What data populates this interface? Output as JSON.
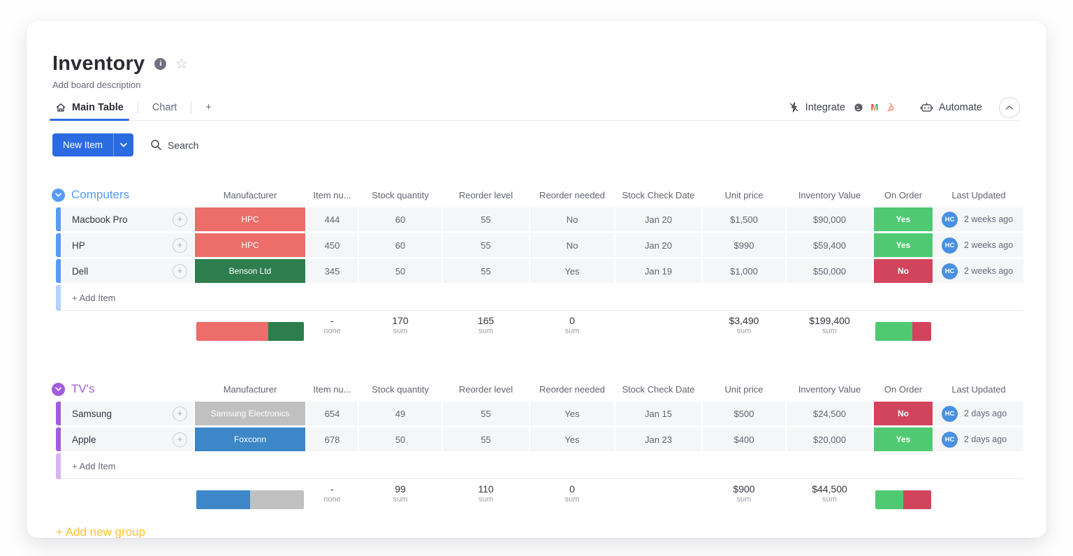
{
  "theme": {
    "accent": "#2b6be2",
    "avatar_color": "#4a90e2",
    "add_group_color": "#fdc12e"
  },
  "board": {
    "title": "Inventory",
    "description": "Add board description",
    "tabs": [
      {
        "label": "Main Table"
      },
      {
        "label": "Chart"
      },
      {
        "label": "+"
      }
    ],
    "integrate_label": "Integrate",
    "automate_label": "Automate"
  },
  "toolbar": {
    "new_item_label": "New Item",
    "search_label": "Search"
  },
  "columns": [
    "Manufacturer",
    "Item nu...",
    "Stock quantity",
    "Reorder level",
    "Reorder needed",
    "Stock Check Date",
    "Unit price",
    "Inventory Value",
    "On Order",
    "Last Updated"
  ],
  "groups": [
    {
      "name": "Computers",
      "color": "#579bfc",
      "add_item_label": "+ Add Item",
      "items": [
        {
          "name": "Macbook Pro",
          "manufacturer": "HPC",
          "manufacturer_color": "#ec6d69",
          "item_number": "444",
          "stock_quantity": "60",
          "reorder_level": "55",
          "reorder_needed": "No",
          "stock_check_date": "Jan 20",
          "unit_price": "$1,500",
          "inventory_value": "$90,000",
          "on_order": "Yes",
          "on_order_color": "#4fca73",
          "owner_initials": "HC",
          "last_updated": "2 weeks ago"
        },
        {
          "name": "HP",
          "manufacturer": "HPC",
          "manufacturer_color": "#ec6d69",
          "item_number": "450",
          "stock_quantity": "60",
          "reorder_level": "55",
          "reorder_needed": "No",
          "stock_check_date": "Jan 20",
          "unit_price": "$990",
          "inventory_value": "$59,400",
          "on_order": "Yes",
          "on_order_color": "#4fca73",
          "owner_initials": "HC",
          "last_updated": "2 weeks ago"
        },
        {
          "name": "Dell",
          "manufacturer": "Benson Ltd",
          "manufacturer_color": "#2d7d4e",
          "item_number": "345",
          "stock_quantity": "50",
          "reorder_level": "55",
          "reorder_needed": "Yes",
          "stock_check_date": "Jan 19",
          "unit_price": "$1,000",
          "inventory_value": "$50,000",
          "on_order": "No",
          "on_order_color": "#d2445c",
          "owner_initials": "HC",
          "last_updated": "2 weeks ago"
        }
      ],
      "summary": {
        "manufacturer_bar": [
          {
            "color": "#ec6d69",
            "pct": 66.7
          },
          {
            "color": "#2d7d4e",
            "pct": 33.3
          }
        ],
        "item_number": {
          "value": "-",
          "label": "none"
        },
        "stock_quantity": {
          "value": "170",
          "label": "sum"
        },
        "reorder_level": {
          "value": "165",
          "label": "sum"
        },
        "reorder_needed": {
          "value": "0",
          "label": "sum"
        },
        "unit_price": {
          "value": "$3,490",
          "label": "sum"
        },
        "inventory_value": {
          "value": "$199,400",
          "label": "sum"
        },
        "on_order_bar": [
          {
            "color": "#4fca73",
            "pct": 66.7
          },
          {
            "color": "#d2445c",
            "pct": 33.3
          }
        ]
      }
    },
    {
      "name": "TV's",
      "color": "#a25ddc",
      "add_item_label": "+ Add Item",
      "items": [
        {
          "name": "Samsung",
          "manufacturer": "Samsung Electronics",
          "manufacturer_color": "#c0c0c0",
          "item_number": "654",
          "stock_quantity": "49",
          "reorder_level": "55",
          "reorder_needed": "Yes",
          "stock_check_date": "Jan 15",
          "unit_price": "$500",
          "inventory_value": "$24,500",
          "on_order": "No",
          "on_order_color": "#d2445c",
          "owner_initials": "HC",
          "last_updated": "2 days ago"
        },
        {
          "name": "Apple",
          "manufacturer": "Foxconn",
          "manufacturer_color": "#3d87c8",
          "item_number": "678",
          "stock_quantity": "50",
          "reorder_level": "55",
          "reorder_needed": "Yes",
          "stock_check_date": "Jan 23",
          "unit_price": "$400",
          "inventory_value": "$20,000",
          "on_order": "Yes",
          "on_order_color": "#4fca73",
          "owner_initials": "HC",
          "last_updated": "2 days ago"
        }
      ],
      "summary": {
        "manufacturer_bar": [
          {
            "color": "#3d87c8",
            "pct": 50
          },
          {
            "color": "#c0c0c0",
            "pct": 50
          }
        ],
        "item_number": {
          "value": "-",
          "label": "none"
        },
        "stock_quantity": {
          "value": "99",
          "label": "sum"
        },
        "reorder_level": {
          "value": "110",
          "label": "sum"
        },
        "reorder_needed": {
          "value": "0",
          "label": "sum"
        },
        "unit_price": {
          "value": "$900",
          "label": "sum"
        },
        "inventory_value": {
          "value": "$44,500",
          "label": "sum"
        },
        "on_order_bar": [
          {
            "color": "#4fca73",
            "pct": 50
          },
          {
            "color": "#d2445c",
            "pct": 50
          }
        ]
      }
    }
  ],
  "add_new_group_label": "+ Add new group"
}
